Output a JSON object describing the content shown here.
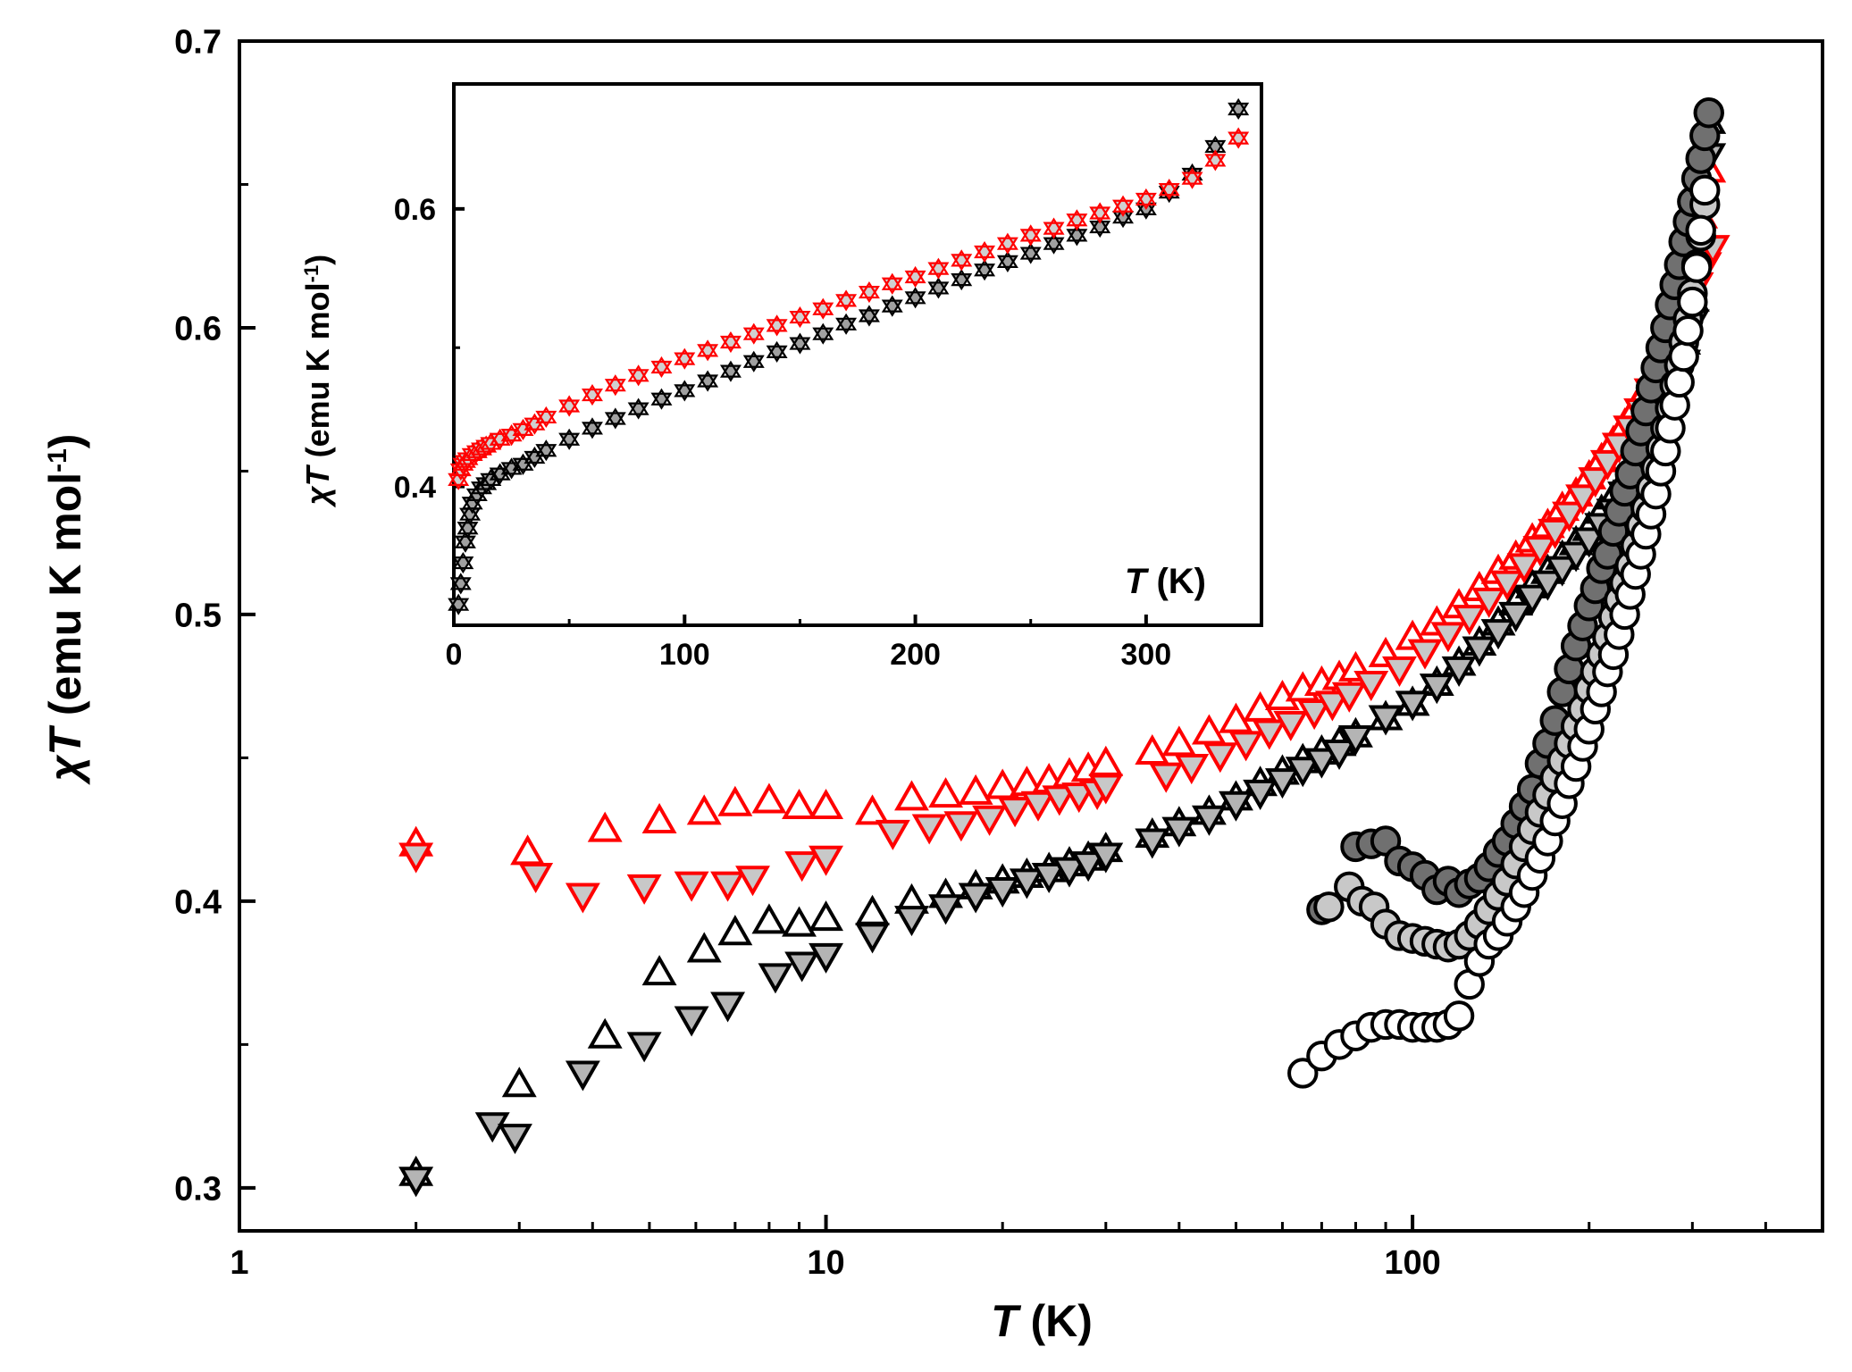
{
  "chart_data": [
    {
      "id": "main",
      "type": "scatter",
      "xscale": "log",
      "xlim": [
        1,
        500
      ],
      "ylim": [
        0.285,
        0.7
      ],
      "xlabel_symbol": "T",
      "xlabel_unit": " (K)",
      "ylabel_symbol": "χT",
      "ylabel_unit": " (emu K mol",
      "ylabel_exp": "-1",
      "ylabel_close": ")",
      "x_ticks": [
        1,
        10,
        100
      ],
      "x_tick_labels": [
        "1",
        "10",
        "100"
      ],
      "y_ticks": [
        0.3,
        0.4,
        0.5,
        0.6,
        0.7
      ],
      "y_tick_labels": [
        "0.3",
        "0.4",
        "0.5",
        "0.6",
        "0.7"
      ],
      "series": [
        {
          "name": "black-up-open",
          "marker": "triangle-up",
          "fill": "#ffffff",
          "stroke": "#000000",
          "x": [
            2,
            3,
            4.2,
            5.2,
            6.2,
            7.0,
            8.0,
            9.0,
            10,
            12,
            14,
            16,
            18,
            20,
            22,
            24,
            26,
            28,
            30,
            36,
            40,
            45,
            50,
            55,
            60,
            65,
            70,
            75,
            80,
            90,
            100,
            110,
            120,
            130,
            140,
            150,
            160,
            170,
            180,
            190,
            200,
            210,
            220,
            230,
            240,
            250,
            260,
            270,
            280,
            290,
            300,
            310,
            320
          ],
          "y": [
            0.305,
            0.336,
            0.353,
            0.375,
            0.383,
            0.389,
            0.393,
            0.392,
            0.394,
            0.396,
            0.4,
            0.402,
            0.405,
            0.407,
            0.409,
            0.411,
            0.413,
            0.415,
            0.418,
            0.423,
            0.427,
            0.431,
            0.436,
            0.441,
            0.445,
            0.449,
            0.452,
            0.455,
            0.458,
            0.464,
            0.469,
            0.476,
            0.483,
            0.49,
            0.497,
            0.504,
            0.51,
            0.515,
            0.52,
            0.525,
            0.53,
            0.536,
            0.541,
            0.547,
            0.553,
            0.559,
            0.566,
            0.574,
            0.583,
            0.595,
            0.61,
            0.635,
            0.672
          ]
        },
        {
          "name": "black-down-gray",
          "marker": "triangle-down",
          "fill": "#b4b4b4",
          "stroke": "#000000",
          "x": [
            2,
            2.7,
            2.95,
            3.85,
            4.9,
            5.9,
            6.8,
            8.2,
            9.1,
            10,
            12,
            14,
            16,
            18,
            20,
            22,
            24,
            26,
            28,
            30,
            36,
            40,
            45,
            50,
            55,
            60,
            65,
            70,
            75,
            80,
            90,
            100,
            110,
            120,
            130,
            140,
            150,
            160,
            170,
            180,
            190,
            200,
            210,
            220,
            230,
            240,
            250,
            260,
            270,
            280,
            290,
            300,
            310,
            320
          ],
          "y": [
            0.303,
            0.322,
            0.318,
            0.34,
            0.35,
            0.359,
            0.364,
            0.374,
            0.378,
            0.381,
            0.388,
            0.394,
            0.398,
            0.402,
            0.404,
            0.407,
            0.409,
            0.411,
            0.413,
            0.416,
            0.421,
            0.425,
            0.429,
            0.434,
            0.438,
            0.442,
            0.446,
            0.449,
            0.452,
            0.457,
            0.464,
            0.469,
            0.475,
            0.481,
            0.488,
            0.494,
            0.5,
            0.506,
            0.511,
            0.516,
            0.521,
            0.526,
            0.531,
            0.536,
            0.542,
            0.548,
            0.554,
            0.561,
            0.569,
            0.578,
            0.588,
            0.602,
            0.625,
            0.66
          ]
        },
        {
          "name": "red-up-open",
          "marker": "triangle-up",
          "fill": "#ffffff",
          "stroke": "#ff0000",
          "x": [
            2,
            3.1,
            4.2,
            5.2,
            6.2,
            7.0,
            8.0,
            9.0,
            10,
            12,
            14,
            16,
            18,
            20,
            22,
            24,
            26,
            28,
            30,
            36,
            40,
            45,
            50,
            55,
            60,
            65,
            70,
            75,
            80,
            90,
            100,
            110,
            120,
            130,
            140,
            150,
            160,
            170,
            180,
            190,
            200,
            210,
            220,
            230,
            240,
            250,
            260,
            270,
            280,
            290,
            300,
            310,
            320
          ],
          "y": [
            0.42,
            0.417,
            0.425,
            0.428,
            0.431,
            0.434,
            0.435,
            0.433,
            0.433,
            0.431,
            0.436,
            0.437,
            0.438,
            0.44,
            0.441,
            0.442,
            0.444,
            0.446,
            0.448,
            0.452,
            0.455,
            0.459,
            0.463,
            0.467,
            0.471,
            0.474,
            0.476,
            0.478,
            0.481,
            0.486,
            0.492,
            0.497,
            0.503,
            0.509,
            0.515,
            0.52,
            0.526,
            0.531,
            0.537,
            0.542,
            0.548,
            0.554,
            0.56,
            0.566,
            0.572,
            0.578,
            0.585,
            0.593,
            0.602,
            0.612,
            0.624,
            0.639,
            0.655
          ]
        },
        {
          "name": "red-down-gray",
          "marker": "triangle-down",
          "fill": "#c8c8c8",
          "stroke": "#ff0000",
          "x": [
            2,
            3.2,
            3.85,
            4.9,
            5.9,
            6.8,
            7.5,
            9.1,
            10,
            13,
            15,
            17,
            19,
            21,
            23,
            25,
            27,
            29,
            30,
            38,
            42,
            47,
            52,
            57,
            62,
            68,
            73,
            78,
            85,
            95,
            105,
            115,
            125,
            135,
            145,
            155,
            165,
            175,
            185,
            195,
            205,
            215,
            225,
            235,
            245,
            255,
            265,
            275,
            285,
            295,
            305,
            315,
            325
          ],
          "y": [
            0.416,
            0.409,
            0.402,
            0.405,
            0.406,
            0.406,
            0.408,
            0.413,
            0.415,
            0.424,
            0.426,
            0.427,
            0.429,
            0.432,
            0.434,
            0.436,
            0.437,
            0.438,
            0.44,
            0.444,
            0.447,
            0.451,
            0.455,
            0.459,
            0.462,
            0.466,
            0.469,
            0.472,
            0.476,
            0.481,
            0.487,
            0.493,
            0.499,
            0.505,
            0.511,
            0.517,
            0.523,
            0.529,
            0.535,
            0.541,
            0.547,
            0.553,
            0.559,
            0.565,
            0.571,
            0.578,
            0.585,
            0.593,
            0.6,
            0.608,
            0.615,
            0.622,
            0.628
          ]
        },
        {
          "name": "circle-dark",
          "marker": "circle",
          "fill": "#707070",
          "stroke": "#000000",
          "x": [
            70,
            80,
            85,
            90,
            95,
            100,
            105,
            110,
            115,
            120,
            125,
            130,
            135,
            140,
            145,
            150,
            155,
            160,
            165,
            170,
            175,
            180,
            185,
            190,
            195,
            200,
            205,
            210,
            215,
            220,
            225,
            230,
            235,
            240,
            245,
            250,
            255,
            260,
            265,
            270,
            275,
            280,
            285,
            290,
            295,
            300,
            305,
            310,
            315,
            320
          ],
          "y": [
            0.397,
            0.419,
            0.42,
            0.421,
            0.414,
            0.412,
            0.409,
            0.404,
            0.407,
            0.403,
            0.406,
            0.408,
            0.412,
            0.417,
            0.421,
            0.427,
            0.433,
            0.439,
            0.448,
            0.455,
            0.463,
            0.473,
            0.481,
            0.489,
            0.496,
            0.503,
            0.509,
            0.516,
            0.521,
            0.529,
            0.536,
            0.543,
            0.549,
            0.557,
            0.564,
            0.571,
            0.579,
            0.586,
            0.593,
            0.6,
            0.608,
            0.615,
            0.622,
            0.63,
            0.637,
            0.644,
            0.652,
            0.659,
            0.667,
            0.675
          ]
        },
        {
          "name": "circle-light",
          "marker": "circle",
          "fill": "#c8c8c8",
          "stroke": "#000000",
          "x": [
            72,
            78,
            82,
            86,
            90,
            95,
            100,
            105,
            110,
            115,
            120,
            125,
            130,
            135,
            140,
            145,
            150,
            155,
            160,
            165,
            170,
            175,
            180,
            185,
            190,
            195,
            200,
            205,
            210,
            215,
            220,
            225,
            230,
            235,
            240,
            245,
            250,
            255,
            260,
            265,
            270,
            275,
            280,
            285,
            290,
            295,
            300,
            305,
            310,
            315
          ],
          "y": [
            0.398,
            0.405,
            0.4,
            0.398,
            0.392,
            0.388,
            0.387,
            0.386,
            0.385,
            0.384,
            0.385,
            0.388,
            0.392,
            0.397,
            0.402,
            0.407,
            0.413,
            0.419,
            0.425,
            0.431,
            0.437,
            0.443,
            0.449,
            0.455,
            0.461,
            0.467,
            0.474,
            0.48,
            0.486,
            0.492,
            0.499,
            0.505,
            0.511,
            0.517,
            0.524,
            0.531,
            0.537,
            0.544,
            0.551,
            0.558,
            0.565,
            0.572,
            0.58,
            0.587,
            0.595,
            0.603,
            0.612,
            0.622,
            0.632,
            0.643
          ]
        },
        {
          "name": "circle-open",
          "marker": "circle",
          "fill": "#ffffff",
          "stroke": "#000000",
          "x": [
            65,
            70,
            75,
            80,
            85,
            90,
            95,
            100,
            105,
            110,
            115,
            120,
            125,
            130,
            135,
            140,
            145,
            150,
            155,
            160,
            165,
            170,
            175,
            180,
            185,
            190,
            195,
            200,
            205,
            210,
            215,
            220,
            225,
            230,
            235,
            240,
            245,
            250,
            255,
            260,
            265,
            270,
            275,
            280,
            285,
            290,
            295,
            300,
            305,
            310,
            315
          ],
          "y": [
            0.34,
            0.346,
            0.35,
            0.353,
            0.356,
            0.357,
            0.357,
            0.356,
            0.356,
            0.356,
            0.357,
            0.36,
            0.371,
            0.379,
            0.385,
            0.388,
            0.393,
            0.398,
            0.403,
            0.409,
            0.415,
            0.421,
            0.428,
            0.434,
            0.441,
            0.447,
            0.454,
            0.46,
            0.467,
            0.473,
            0.48,
            0.486,
            0.493,
            0.5,
            0.507,
            0.514,
            0.521,
            0.528,
            0.535,
            0.542,
            0.55,
            0.557,
            0.565,
            0.573,
            0.581,
            0.59,
            0.599,
            0.609,
            0.621,
            0.634,
            0.648
          ]
        }
      ]
    },
    {
      "id": "inset",
      "type": "scatter",
      "xscale": "linear",
      "xlim": [
        0,
        350
      ],
      "ylim": [
        0.3,
        0.69
      ],
      "xlabel_symbol": "T",
      "xlabel_unit": " (K)",
      "ylabel_symbol": "χT",
      "ylabel_unit": " (emu K mol",
      "ylabel_exp": "-1",
      "ylabel_close": ")",
      "x_ticks": [
        0,
        100,
        200,
        300
      ],
      "x_tick_labels": [
        "0",
        "100",
        "200",
        "300"
      ],
      "y_ticks": [
        0.4,
        0.6
      ],
      "y_tick_labels": [
        "0.4",
        "0.6"
      ],
      "series": [
        {
          "name": "inset-black",
          "marker": "star",
          "fill": "#a0a0a0",
          "stroke": "#000000",
          "x": [
            2,
            3,
            4,
            5,
            6,
            7,
            8,
            10,
            12,
            14,
            16,
            20,
            25,
            30,
            35,
            40,
            50,
            60,
            70,
            80,
            90,
            100,
            110,
            120,
            130,
            140,
            150,
            160,
            170,
            180,
            190,
            200,
            210,
            220,
            230,
            240,
            250,
            260,
            270,
            280,
            290,
            300,
            310,
            320,
            330,
            340
          ],
          "y": [
            0.315,
            0.33,
            0.345,
            0.36,
            0.37,
            0.38,
            0.388,
            0.394,
            0.399,
            0.402,
            0.405,
            0.409,
            0.413,
            0.416,
            0.421,
            0.426,
            0.434,
            0.442,
            0.449,
            0.456,
            0.463,
            0.469,
            0.476,
            0.483,
            0.49,
            0.497,
            0.503,
            0.51,
            0.517,
            0.523,
            0.53,
            0.536,
            0.543,
            0.549,
            0.556,
            0.562,
            0.568,
            0.575,
            0.581,
            0.587,
            0.594,
            0.6,
            0.612,
            0.625,
            0.645,
            0.672
          ]
        },
        {
          "name": "inset-red",
          "marker": "star",
          "fill": "#d0d0d0",
          "stroke": "#ff0000",
          "x": [
            2,
            3,
            4,
            5,
            6,
            8,
            10,
            12,
            14,
            16,
            20,
            25,
            30,
            35,
            40,
            50,
            60,
            70,
            80,
            90,
            100,
            110,
            120,
            130,
            140,
            150,
            160,
            170,
            180,
            190,
            200,
            210,
            220,
            230,
            240,
            250,
            260,
            270,
            280,
            290,
            300,
            310,
            320,
            330,
            340
          ],
          "y": [
            0.405,
            0.412,
            0.416,
            0.418,
            0.42,
            0.423,
            0.425,
            0.427,
            0.429,
            0.431,
            0.434,
            0.437,
            0.441,
            0.445,
            0.45,
            0.458,
            0.466,
            0.473,
            0.48,
            0.486,
            0.492,
            0.498,
            0.504,
            0.51,
            0.516,
            0.522,
            0.528,
            0.534,
            0.54,
            0.546,
            0.551,
            0.557,
            0.563,
            0.569,
            0.575,
            0.581,
            0.586,
            0.592,
            0.597,
            0.602,
            0.607,
            0.614,
            0.622,
            0.635,
            0.651
          ]
        }
      ]
    }
  ]
}
